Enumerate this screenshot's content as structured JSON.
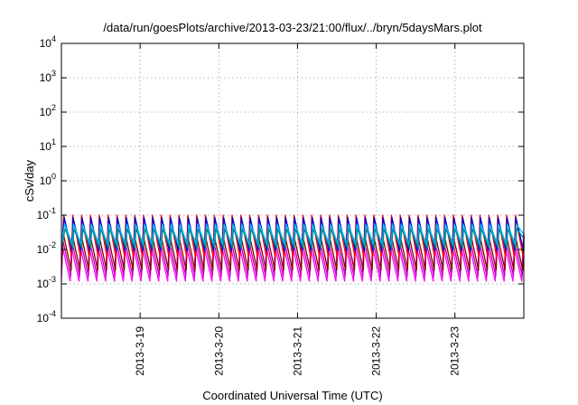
{
  "chart_data": {
    "type": "line",
    "title": "/data/run/goesPlots/archive/2013-03-23/21:00/flux/../bryn/5daysMars.plot",
    "xlabel": "Coordinated Universal Time (UTC)",
    "ylabel": "cSv/day",
    "y_scale": "log",
    "ylim": [
      0.0001,
      10000
    ],
    "y_ticks": [
      {
        "base": "10",
        "exp": "-4",
        "value": 0.0001
      },
      {
        "base": "10",
        "exp": "-3",
        "value": 0.001
      },
      {
        "base": "10",
        "exp": "-2",
        "value": 0.01
      },
      {
        "base": "10",
        "exp": "-1",
        "value": 0.1
      },
      {
        "base": "10",
        "exp": "0",
        "value": 1
      },
      {
        "base": "10",
        "exp": "1",
        "value": 10
      },
      {
        "base": "10",
        "exp": "2",
        "value": 100
      },
      {
        "base": "10",
        "exp": "3",
        "value": 1000
      },
      {
        "base": "10",
        "exp": "4",
        "value": 10000
      }
    ],
    "xlim": [
      "2013-03-18T00:00",
      "2013-03-23T21:00"
    ],
    "x_ticks": [
      "2013-3-19",
      "2013-3-20",
      "2013-3-21",
      "2013-3-22",
      "2013-3-23"
    ],
    "x_tick_dates": [
      "2013-03-19T00:00",
      "2013-03-20T00:00",
      "2013-03-21T00:00",
      "2013-03-22T00:00",
      "2013-03-23T00:00"
    ],
    "grid": true,
    "legend": "none",
    "period_hours": 2.7,
    "series": [
      {
        "color": "#ff00ff",
        "peak": 0.012,
        "trough": 0.0012
      },
      {
        "color": "#c000c0",
        "peak": 0.018,
        "trough": 0.0017
      },
      {
        "color": "#8b0000",
        "peak": 0.028,
        "trough": 0.0025
      },
      {
        "color": "#ff0000",
        "peak": 0.1,
        "trough": 0.006
      },
      {
        "color": "#0000cd",
        "peak": 0.085,
        "trough": 0.009
      },
      {
        "color": "#00bfff",
        "peak": 0.055,
        "trough": 0.014
      },
      {
        "color": "#008b8b",
        "peak": 0.04,
        "trough": 0.011
      }
    ]
  }
}
